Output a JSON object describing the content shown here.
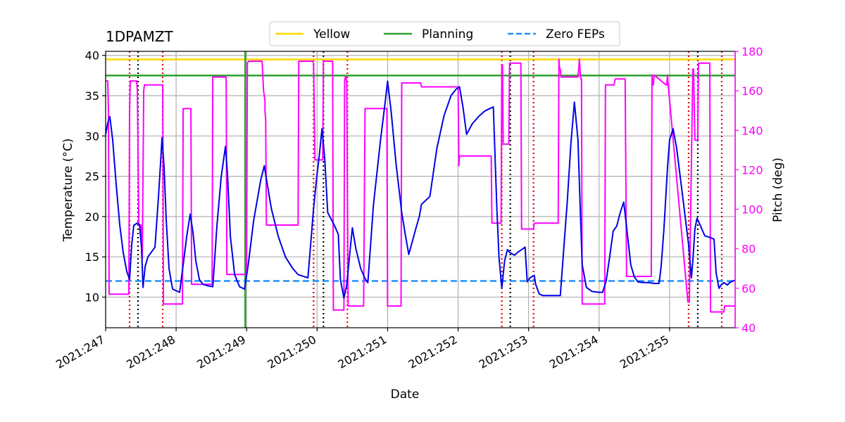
{
  "chart_data": {
    "type": "line",
    "title": "1DPAMZT",
    "xlabel": "Date",
    "ylabel": "Temperature ($^\\circ$C)",
    "ylabel_display": "Temperature (°C)",
    "y2label": "Pitch (deg)",
    "xlim": [
      247.0,
      255.93
    ],
    "ylim": [
      6.2,
      40.5
    ],
    "y2lim": [
      40,
      180
    ],
    "x_ticks": [
      247,
      248,
      249,
      250,
      251,
      252,
      253,
      254,
      255
    ],
    "x_tick_labels": [
      "2021:247",
      "2021:248",
      "2021:249",
      "2021:250",
      "2021:251",
      "2021:252",
      "2021:253",
      "2021:254",
      "2021:255"
    ],
    "y_ticks": [
      10,
      15,
      20,
      25,
      30,
      35,
      40
    ],
    "y2_ticks": [
      40,
      60,
      80,
      100,
      120,
      140,
      160,
      180
    ],
    "grid": true,
    "legend": {
      "placement": "top-center",
      "entries": [
        {
          "label": "Yellow",
          "color": "#ffd700",
          "style": "solid"
        },
        {
          "label": "Planning",
          "color": "#2ca02c",
          "style": "solid"
        },
        {
          "label": "Zero FEPs",
          "color": "#1e90ff",
          "style": "dashed"
        }
      ]
    },
    "colors": {
      "temperature": "#0000e6",
      "pitch": "#ff00ff",
      "pitch_axis": "#ff00ff",
      "yellow": "#ffd700",
      "planning": "#2ca02c",
      "zero_feps": "#1e90ff",
      "red_markers": "#dd0000",
      "black_markers": "#000000",
      "grid": "#b0b0b0"
    },
    "limits": {
      "yellow": 39.5,
      "planning": 37.5,
      "zero_feps": 12.0
    },
    "planning_vline_x": 248.98,
    "red_dotted_x": [
      247.34,
      247.81,
      249.95,
      250.43,
      252.62,
      253.07,
      255.27,
      255.74
    ],
    "black_dotted_x": [
      247.46,
      250.09,
      252.74,
      255.4
    ],
    "series": [
      {
        "name": "1DPAMZT temperature",
        "axis": "left",
        "x": [
          247.0,
          247.03,
          247.06,
          247.1,
          247.15,
          247.2,
          247.25,
          247.3,
          247.34,
          247.37,
          247.4,
          247.45,
          247.48,
          247.51,
          247.53,
          247.56,
          247.6,
          247.7,
          247.75,
          247.78,
          247.8,
          247.83,
          247.86,
          247.9,
          247.95,
          248.05,
          248.1,
          248.15,
          248.2,
          248.24,
          248.28,
          248.33,
          248.38,
          248.45,
          248.52,
          248.58,
          248.64,
          248.7,
          248.73,
          248.77,
          248.83,
          248.9,
          248.97,
          249.02,
          249.1,
          249.2,
          249.25,
          249.35,
          249.45,
          249.55,
          249.65,
          249.73,
          249.8,
          249.87,
          249.95,
          249.99,
          250.03,
          250.07,
          250.11,
          250.15,
          250.25,
          250.3,
          250.33,
          250.38,
          250.42,
          250.47,
          250.5,
          250.55,
          250.62,
          250.68,
          250.72,
          250.8,
          250.9,
          250.97,
          251.0,
          251.05,
          251.12,
          251.2,
          251.25,
          251.3,
          251.4,
          251.45,
          251.48,
          251.6,
          251.7,
          251.8,
          251.9,
          251.97,
          252.02,
          252.07,
          252.12,
          252.2,
          252.3,
          252.38,
          252.45,
          252.5,
          252.55,
          252.58,
          252.62,
          252.66,
          252.7,
          252.74,
          252.8,
          252.85,
          252.92,
          252.95,
          252.98,
          253.02,
          253.08,
          253.1,
          253.15,
          253.2,
          253.3,
          253.4,
          253.45,
          253.55,
          253.6,
          253.65,
          253.7,
          253.73,
          253.76,
          253.82,
          253.9,
          254.0,
          254.05,
          254.1,
          254.15,
          254.2,
          254.25,
          254.3,
          254.35,
          254.38,
          254.45,
          254.5,
          254.55,
          254.62,
          254.7,
          254.78,
          254.85,
          254.88,
          254.92,
          254.97,
          255.0,
          255.05,
          255.1,
          255.2,
          255.27,
          255.31,
          255.33,
          255.36,
          255.39,
          255.43,
          255.5,
          255.58,
          255.6,
          255.63,
          255.66,
          255.7,
          255.73,
          255.77,
          255.82,
          255.85,
          255.9,
          255.93
        ],
        "y": [
          30.2,
          31.6,
          32.4,
          29.5,
          24.0,
          19.0,
          15.5,
          13.2,
          12.2,
          16.5,
          18.9,
          19.2,
          19.0,
          16.0,
          11.2,
          13.8,
          15.0,
          16.2,
          22.5,
          26.8,
          29.8,
          26.0,
          19.5,
          13.5,
          11.0,
          10.6,
          14.0,
          17.5,
          20.3,
          18.0,
          14.5,
          12.2,
          11.6,
          11.4,
          11.3,
          19.0,
          25.0,
          28.7,
          25.0,
          17.5,
          12.8,
          11.3,
          11.0,
          13.8,
          19.5,
          24.5,
          26.3,
          21.0,
          17.5,
          15.0,
          13.6,
          12.8,
          12.6,
          12.4,
          21.0,
          24.5,
          27.5,
          30.9,
          27.0,
          20.5,
          18.8,
          17.8,
          12.2,
          9.9,
          11.5,
          16.0,
          18.6,
          16.0,
          13.5,
          12.3,
          11.8,
          21.5,
          29.5,
          34.5,
          36.8,
          33.0,
          26.5,
          20.5,
          17.8,
          15.3,
          18.5,
          20.0,
          21.5,
          22.5,
          28.5,
          32.5,
          35.0,
          35.8,
          36.1,
          33.5,
          30.2,
          31.5,
          32.5,
          33.1,
          33.4,
          33.6,
          21.0,
          15.0,
          11.1,
          14.5,
          15.9,
          15.5,
          15.2,
          15.6,
          16.0,
          16.2,
          11.9,
          12.4,
          12.7,
          11.6,
          10.4,
          10.2,
          10.2,
          10.2,
          10.2,
          22.0,
          29.0,
          34.2,
          29.5,
          21.5,
          14.0,
          11.2,
          10.7,
          10.6,
          10.6,
          12.0,
          15.0,
          18.2,
          18.8,
          20.5,
          21.8,
          19.5,
          14.0,
          12.5,
          11.9,
          11.8,
          11.8,
          11.7,
          11.7,
          13.8,
          18.5,
          26.0,
          29.5,
          30.9,
          28.5,
          21.5,
          16.5,
          12.4,
          14.5,
          18.5,
          19.8,
          19.0,
          17.6,
          17.4,
          17.3,
          17.2,
          13.0,
          11.1,
          11.5,
          11.8,
          11.5,
          11.8,
          12.0,
          12.1
        ]
      },
      {
        "name": "Pitch",
        "axis": "right",
        "x": [
          247.0,
          247.03,
          247.04,
          247.05,
          247.33,
          247.34,
          247.35,
          247.44,
          247.45,
          247.47,
          247.5,
          247.51,
          247.52,
          247.54,
          247.55,
          247.8,
          247.81,
          247.82,
          248.08,
          248.09,
          248.1,
          248.21,
          248.22,
          248.23,
          248.51,
          248.52,
          248.53,
          248.71,
          248.72,
          248.74,
          249.0,
          249.01,
          249.03,
          249.22,
          249.24,
          249.26,
          249.26,
          249.27,
          249.28,
          249.29,
          249.72,
          249.73,
          249.74,
          249.76,
          249.94,
          249.95,
          249.97,
          249.98,
          250.08,
          250.09,
          250.11,
          250.12,
          250.22,
          250.23,
          250.25,
          250.26,
          250.38,
          250.39,
          250.4,
          250.41,
          250.42,
          250.43,
          250.44,
          250.46,
          250.66,
          250.68,
          250.69,
          250.99,
          251.0,
          251.02,
          251.19,
          251.2,
          251.22,
          251.47,
          251.48,
          252.0,
          252.01,
          252.02,
          252.05,
          252.06,
          252.46,
          252.47,
          252.48,
          252.61,
          252.62,
          252.63,
          252.64,
          252.65,
          252.72,
          252.73,
          252.74,
          252.89,
          252.9,
          252.91,
          253.07,
          253.08,
          253.09,
          253.42,
          253.43,
          253.44,
          253.45,
          253.46,
          253.47,
          253.7,
          253.71,
          253.72,
          253.73,
          253.74,
          253.75,
          253.76,
          254.07,
          254.08,
          254.09,
          254.2,
          254.21,
          254.23,
          254.36,
          254.37,
          254.39,
          254.73,
          254.74,
          254.75,
          254.76,
          254.77,
          254.78,
          254.95,
          254.96,
          254.97,
          254.98,
          255.26,
          255.27,
          255.28,
          255.33,
          255.34,
          255.36,
          255.4,
          255.41,
          255.42,
          255.57,
          255.58,
          255.59,
          255.77,
          255.78,
          255.79,
          255.93
        ],
        "y": [
          165,
          165,
          150,
          57,
          57,
          150,
          165,
          165,
          160,
          92,
          92,
          88,
          75,
          160,
          163,
          163,
          163,
          52,
          52,
          52,
          151,
          151,
          62,
          62,
          62,
          167,
          167,
          167,
          67,
          67,
          67,
          174,
          175,
          175,
          160,
          155,
          150,
          145,
          92,
          92,
          92,
          92,
          175,
          175,
          175,
          174,
          125,
          125,
          125,
          175,
          175,
          175,
          175,
          49,
          49,
          49,
          49,
          165,
          167,
          167,
          164,
          108,
          51,
          51,
          51,
          151,
          151,
          151,
          51,
          51,
          51,
          164,
          164,
          164,
          162,
          162,
          122,
          127,
          127,
          127,
          127,
          127,
          93,
          93,
          173,
          173,
          133,
          133,
          133,
          174,
          174,
          174,
          90,
          90,
          90,
          93,
          93,
          93,
          176,
          171,
          171,
          167,
          167,
          167,
          171,
          176,
          170,
          166,
          166,
          52,
          52,
          52,
          163,
          163,
          163,
          166,
          166,
          166,
          66,
          66,
          66,
          168,
          163,
          163,
          168,
          163,
          163,
          168,
          163,
          53,
          53,
          53,
          171,
          171,
          135,
          135,
          174,
          174,
          174,
          48,
          48,
          48,
          51,
          51,
          51
        ]
      }
    ]
  }
}
